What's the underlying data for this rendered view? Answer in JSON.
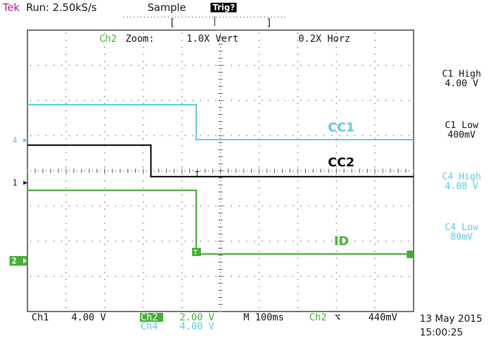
{
  "header": {
    "brand": "Tek",
    "run": "Run: 2.50kS/s",
    "acq_mode": "Sample",
    "trig_state": "Trig?"
  },
  "zoom": {
    "channel": "Ch2",
    "label": "Zoom:",
    "vert": "1.0X Vert",
    "horz": "0.2X Horz"
  },
  "traces": [
    {
      "name": "CC1",
      "color": "#5ec8e0"
    },
    {
      "name": "CC2",
      "color": "#111111"
    },
    {
      "name": "ID",
      "color": "#45b035"
    }
  ],
  "channel_markers": {
    "ch4": "4",
    "ch1": "1",
    "ch2": "2"
  },
  "right_panel": {
    "c1_high_label": "C1 High",
    "c1_high_value": "4.00 V",
    "c1_low_label": "C1 Low",
    "c1_low_value": "400mV",
    "c4_high_label": "C4 High",
    "c4_high_value": "4.08 V",
    "c4_low_label": "C4 Low",
    "c4_low_value": "80mV"
  },
  "bottom": {
    "ch1_name": "Ch1",
    "ch1_scale": "4.00 V",
    "ch2_name": "Ch2",
    "ch2_scale": "2.00 V",
    "ch4_name": "Ch4",
    "ch4_scale": "4.00 V",
    "timebase": "M 100ms",
    "trig_source": "Ch2",
    "trig_slope": "⌥",
    "trig_level": "440mV",
    "date": "13 May 2015",
    "time": "15:00:25"
  },
  "colors": {
    "brand": "#b0178f",
    "ch4": "#5ec8e0",
    "ch1": "#111111",
    "ch2": "#45b035"
  }
}
